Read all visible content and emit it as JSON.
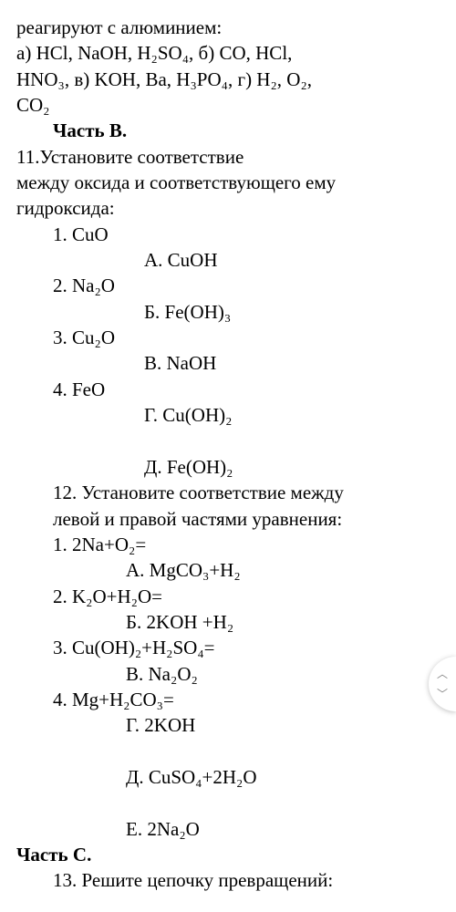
{
  "q10": {
    "stem": "реагируют с алюминием:",
    "line1": "а) HCl, NaOH, H₂SO₄,  б) CO, HCl,",
    "line2": "HNO₃,  в) KOH, Ba, H₃PO₄,  г) H₂, O₂,",
    "line3": "CO₂"
  },
  "partB": "Часть B.",
  "q11": {
    "stem1": "11.Установите соответствие",
    "stem2": "между оксида и соответствующего ему",
    "stem3": "гидроксида:",
    "left": [
      "1. CuO",
      "2. Na₂O",
      "3. Cu₂O",
      "4. FeO"
    ],
    "right": [
      "А. CuOH",
      "Б. Fe(OH)₃",
      "В. NaOH",
      "Г. Cu(OH)₂",
      "Д. Fe(OH)₂"
    ]
  },
  "q12": {
    "stem1": "12. Установите соответствие между",
    "stem2": "левой и правой частями уравнения:",
    "left": [
      "1. 2Na+O₂=",
      "2. K₂O+H₂O=",
      "3. Cu(OH)₂+H₂SO₄=",
      "4. Mg+H₂CO₃="
    ],
    "right": [
      "А. MgCO₃+H₂",
      "Б. 2KOH +H₂",
      "В. Na₂O₂",
      "Г. 2KOH",
      "Д. CuSO₄+2H₂O",
      "Е. 2Na₂O"
    ]
  },
  "partC": "Часть C.",
  "q13": "13. Решите цепочку превращений:",
  "colors": {
    "text": "#000000",
    "bg": "#ffffff",
    "widget_shadow": "rgba(0,0,0,0.25)",
    "chev": "#888888"
  },
  "typography": {
    "font_family": "Times New Roman",
    "font_size_pt": 16,
    "line_height": 1.35
  }
}
